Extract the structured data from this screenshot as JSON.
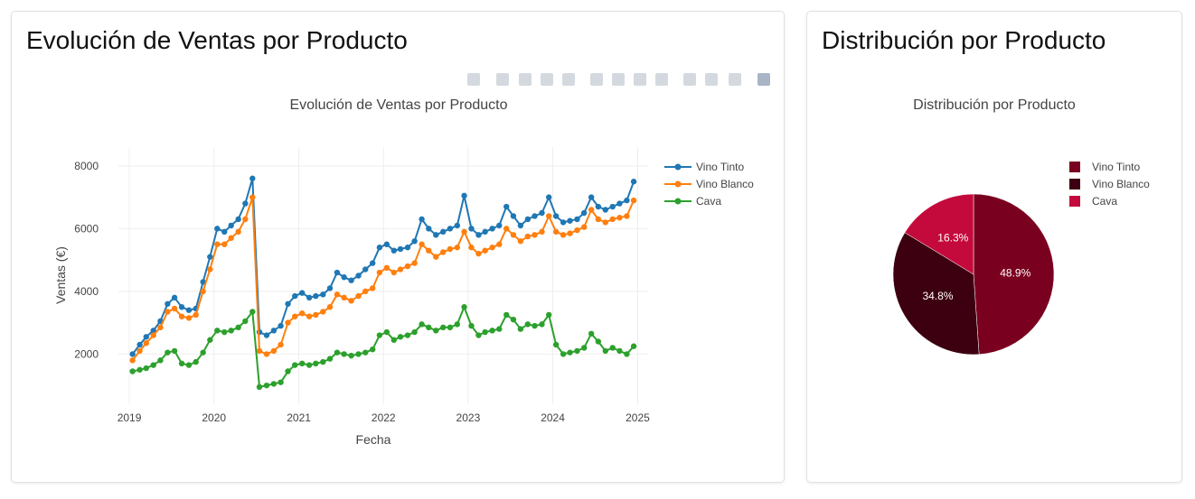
{
  "line_card": {
    "title": "Evolución de Ventas por Producto"
  },
  "pie_card": {
    "title": "Distribución por Producto"
  },
  "colors": {
    "vino_tinto": "#1f77b4",
    "vino_blanco": "#ff7f0e",
    "cava": "#2ca02c",
    "pie_tinto": "#7a0020",
    "pie_blanco": "#3d0010",
    "pie_cava": "#c40a3c"
  },
  "modebar_icons": [
    "camera-icon",
    "zoom-icon",
    "pan-icon",
    "box-select-icon",
    "lasso-icon",
    "zoom-in-icon",
    "zoom-out-icon",
    "autoscale-icon",
    "reset-axes-icon",
    "spike-lines-icon",
    "hover-closest-icon",
    "hover-compare-icon",
    "plotly-logo-icon"
  ],
  "chart_data": [
    {
      "type": "line",
      "title": "Evolución de Ventas por Producto",
      "xlabel": "Fecha",
      "ylabel": "Ventas (€)",
      "x_ticks": [
        "2019",
        "2020",
        "2021",
        "2022",
        "2023",
        "2024",
        "2025"
      ],
      "y_ticks": [
        2000,
        4000,
        6000,
        8000
      ],
      "xlim": [
        "2018-11-15",
        "2025-02-15"
      ],
      "ylim": [
        400,
        8600
      ],
      "grid": true,
      "legend_position": "right",
      "series": [
        {
          "name": "Vino Tinto",
          "color": "#1f77b4",
          "x": [
            "2019-01",
            "2019-02",
            "2019-03",
            "2019-04",
            "2019-05",
            "2019-06",
            "2019-07",
            "2019-08",
            "2019-09",
            "2019-10",
            "2019-11",
            "2019-12",
            "2020-01",
            "2020-02",
            "2020-03",
            "2020-04",
            "2020-05",
            "2020-06",
            "2020-07",
            "2020-08",
            "2020-09",
            "2020-10",
            "2020-11",
            "2020-12",
            "2021-01",
            "2021-02",
            "2021-03",
            "2021-04",
            "2021-05",
            "2021-06",
            "2021-07",
            "2021-08",
            "2021-09",
            "2021-10",
            "2021-11",
            "2021-12",
            "2022-01",
            "2022-02",
            "2022-03",
            "2022-04",
            "2022-05",
            "2022-06",
            "2022-07",
            "2022-08",
            "2022-09",
            "2022-10",
            "2022-11",
            "2022-12",
            "2023-01",
            "2023-02",
            "2023-03",
            "2023-04",
            "2023-05",
            "2023-06",
            "2023-07",
            "2023-08",
            "2023-09",
            "2023-10",
            "2023-11",
            "2023-12",
            "2024-01",
            "2024-02",
            "2024-03",
            "2024-04",
            "2024-05",
            "2024-06",
            "2024-07",
            "2024-08",
            "2024-09",
            "2024-10",
            "2024-11",
            "2024-12"
          ],
          "values": [
            2000,
            2300,
            2550,
            2750,
            3050,
            3600,
            3800,
            3500,
            3400,
            3450,
            4300,
            5100,
            6000,
            5900,
            6100,
            6300,
            6800,
            7600,
            2700,
            2600,
            2750,
            2900,
            3600,
            3850,
            3950,
            3800,
            3850,
            3900,
            4100,
            4600,
            4450,
            4350,
            4500,
            4700,
            4900,
            5400,
            5500,
            5300,
            5350,
            5400,
            5600,
            6300,
            6000,
            5800,
            5900,
            6000,
            6100,
            7050,
            6000,
            5800,
            5900,
            6000,
            6100,
            6700,
            6400,
            6100,
            6300,
            6400,
            6500,
            7000,
            6400,
            6200,
            6250,
            6300,
            6500,
            7000,
            6700,
            6600,
            6700,
            6800,
            6900,
            7500
          ]
        },
        {
          "name": "Vino Blanco",
          "color": "#ff7f0e",
          "x": [
            "2019-01",
            "2019-02",
            "2019-03",
            "2019-04",
            "2019-05",
            "2019-06",
            "2019-07",
            "2019-08",
            "2019-09",
            "2019-10",
            "2019-11",
            "2019-12",
            "2020-01",
            "2020-02",
            "2020-03",
            "2020-04",
            "2020-05",
            "2020-06",
            "2020-07",
            "2020-08",
            "2020-09",
            "2020-10",
            "2020-11",
            "2020-12",
            "2021-01",
            "2021-02",
            "2021-03",
            "2021-04",
            "2021-05",
            "2021-06",
            "2021-07",
            "2021-08",
            "2021-09",
            "2021-10",
            "2021-11",
            "2021-12",
            "2022-01",
            "2022-02",
            "2022-03",
            "2022-04",
            "2022-05",
            "2022-06",
            "2022-07",
            "2022-08",
            "2022-09",
            "2022-10",
            "2022-11",
            "2022-12",
            "2023-01",
            "2023-02",
            "2023-03",
            "2023-04",
            "2023-05",
            "2023-06",
            "2023-07",
            "2023-08",
            "2023-09",
            "2023-10",
            "2023-11",
            "2023-12",
            "2024-01",
            "2024-02",
            "2024-03",
            "2024-04",
            "2024-05",
            "2024-06",
            "2024-07",
            "2024-08",
            "2024-09",
            "2024-10",
            "2024-11",
            "2024-12"
          ],
          "values": [
            1800,
            2100,
            2350,
            2600,
            2850,
            3350,
            3450,
            3200,
            3150,
            3250,
            4000,
            4700,
            5500,
            5500,
            5700,
            5900,
            6300,
            7000,
            2100,
            2000,
            2100,
            2300,
            3000,
            3200,
            3300,
            3200,
            3250,
            3350,
            3500,
            3900,
            3800,
            3700,
            3850,
            4000,
            4100,
            4600,
            4750,
            4600,
            4700,
            4800,
            4900,
            5500,
            5300,
            5100,
            5250,
            5350,
            5400,
            5900,
            5400,
            5200,
            5300,
            5400,
            5500,
            6000,
            5800,
            5600,
            5750,
            5800,
            5900,
            6400,
            5900,
            5800,
            5850,
            5950,
            6050,
            6600,
            6300,
            6200,
            6300,
            6350,
            6400,
            6900
          ]
        },
        {
          "name": "Cava",
          "color": "#2ca02c",
          "x": [
            "2019-01",
            "2019-02",
            "2019-03",
            "2019-04",
            "2019-05",
            "2019-06",
            "2019-07",
            "2019-08",
            "2019-09",
            "2019-10",
            "2019-11",
            "2019-12",
            "2020-01",
            "2020-02",
            "2020-03",
            "2020-04",
            "2020-05",
            "2020-06",
            "2020-07",
            "2020-08",
            "2020-09",
            "2020-10",
            "2020-11",
            "2020-12",
            "2021-01",
            "2021-02",
            "2021-03",
            "2021-04",
            "2021-05",
            "2021-06",
            "2021-07",
            "2021-08",
            "2021-09",
            "2021-10",
            "2021-11",
            "2021-12",
            "2022-01",
            "2022-02",
            "2022-03",
            "2022-04",
            "2022-05",
            "2022-06",
            "2022-07",
            "2022-08",
            "2022-09",
            "2022-10",
            "2022-11",
            "2022-12",
            "2023-01",
            "2023-02",
            "2023-03",
            "2023-04",
            "2023-05",
            "2023-06",
            "2023-07",
            "2023-08",
            "2023-09",
            "2023-10",
            "2023-11",
            "2023-12",
            "2024-01",
            "2024-02",
            "2024-03",
            "2024-04",
            "2024-05",
            "2024-06",
            "2024-07",
            "2024-08",
            "2024-09",
            "2024-10",
            "2024-11",
            "2024-12"
          ],
          "values": [
            1450,
            1500,
            1550,
            1650,
            1800,
            2050,
            2100,
            1700,
            1650,
            1750,
            2050,
            2450,
            2750,
            2700,
            2750,
            2850,
            3050,
            3350,
            950,
            1000,
            1050,
            1100,
            1450,
            1650,
            1700,
            1650,
            1700,
            1750,
            1850,
            2050,
            2000,
            1950,
            2000,
            2050,
            2150,
            2600,
            2700,
            2450,
            2550,
            2600,
            2700,
            2950,
            2850,
            2750,
            2850,
            2850,
            2950,
            3500,
            2900,
            2600,
            2700,
            2750,
            2800,
            3250,
            3100,
            2800,
            2950,
            2900,
            2950,
            3250,
            2300,
            2000,
            2050,
            2100,
            2200,
            2650,
            2400,
            2100,
            2200,
            2100,
            2000,
            2250
          ]
        }
      ]
    },
    {
      "type": "pie",
      "title": "Distribución por Producto",
      "legend_position": "right",
      "slices": [
        {
          "label": "Vino Tinto",
          "value": 48.9,
          "text": "48.9%",
          "color": "#7a0020"
        },
        {
          "label": "Vino Blanco",
          "value": 34.8,
          "text": "34.8%",
          "color": "#3d0010"
        },
        {
          "label": "Cava",
          "value": 16.3,
          "text": "16.3%",
          "color": "#c40a3c"
        }
      ]
    }
  ]
}
